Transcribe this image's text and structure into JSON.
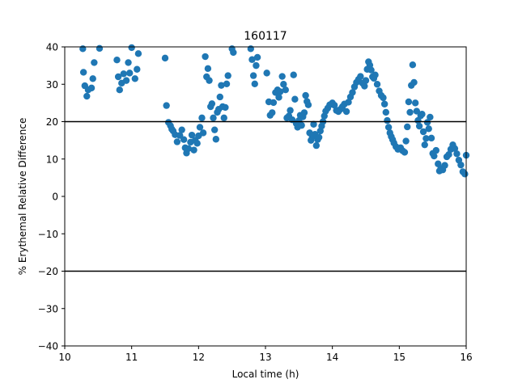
{
  "chart_data": {
    "type": "scatter",
    "title": "160117",
    "xlabel": "Local time (h)",
    "ylabel": "% Erythemal Relative Difference",
    "xlim": [
      10,
      16
    ],
    "ylim": [
      -40,
      40
    ],
    "xticks": [
      10,
      11,
      12,
      13,
      14,
      15,
      16
    ],
    "yticks": [
      -40,
      -30,
      -20,
      -10,
      0,
      10,
      20,
      30,
      40
    ],
    "x_tick_labels": [
      "10",
      "11",
      "12",
      "13",
      "14",
      "15",
      "16"
    ],
    "y_tick_labels": [
      "−40",
      "−30",
      "−20",
      "−10",
      "0",
      "10",
      "20",
      "30",
      "40"
    ],
    "reference_lines": [
      20,
      -20
    ],
    "reference_line_color": "#000000",
    "marker_color": "#1f77b4",
    "grid": false,
    "points": [
      [
        10.27,
        39.5
      ],
      [
        10.28,
        33.2
      ],
      [
        10.3,
        29.6
      ],
      [
        10.33,
        26.8
      ],
      [
        10.35,
        28.5
      ],
      [
        10.4,
        29.0
      ],
      [
        10.42,
        31.5
      ],
      [
        10.44,
        35.8
      ],
      [
        10.52,
        39.6
      ],
      [
        10.78,
        36.5
      ],
      [
        10.8,
        32.0
      ],
      [
        10.82,
        28.5
      ],
      [
        10.85,
        30.3
      ],
      [
        10.88,
        32.8
      ],
      [
        10.92,
        31.0
      ],
      [
        10.95,
        35.8
      ],
      [
        10.97,
        33.0
      ],
      [
        11.0,
        39.8
      ],
      [
        11.05,
        31.5
      ],
      [
        11.08,
        34.0
      ],
      [
        11.1,
        38.2
      ],
      [
        11.5,
        37.0
      ],
      [
        11.52,
        24.3
      ],
      [
        11.55,
        19.8
      ],
      [
        11.58,
        18.9
      ],
      [
        11.6,
        18.0
      ],
      [
        11.62,
        17.5
      ],
      [
        11.65,
        16.5
      ],
      [
        11.68,
        14.6
      ],
      [
        11.72,
        16.3
      ],
      [
        11.75,
        17.8
      ],
      [
        11.78,
        15.2
      ],
      [
        11.8,
        13.0
      ],
      [
        11.82,
        11.6
      ],
      [
        11.85,
        12.8
      ],
      [
        11.88,
        14.5
      ],
      [
        11.9,
        16.4
      ],
      [
        11.93,
        12.4
      ],
      [
        11.95,
        15.0
      ],
      [
        11.98,
        14.2
      ],
      [
        12.0,
        16.2
      ],
      [
        12.02,
        18.5
      ],
      [
        12.05,
        21.0
      ],
      [
        12.07,
        17.0
      ],
      [
        12.1,
        37.4
      ],
      [
        12.12,
        32.0
      ],
      [
        12.14,
        34.2
      ],
      [
        12.16,
        31.0
      ],
      [
        12.18,
        24.0
      ],
      [
        12.2,
        24.8
      ],
      [
        12.22,
        21.0
      ],
      [
        12.24,
        17.8
      ],
      [
        12.26,
        15.3
      ],
      [
        12.28,
        22.5
      ],
      [
        12.3,
        23.3
      ],
      [
        12.32,
        26.6
      ],
      [
        12.34,
        29.7
      ],
      [
        12.36,
        24.0
      ],
      [
        12.38,
        21.0
      ],
      [
        12.4,
        23.8
      ],
      [
        12.42,
        30.1
      ],
      [
        12.44,
        32.3
      ],
      [
        12.5,
        39.5
      ],
      [
        12.52,
        38.5
      ],
      [
        12.78,
        39.5
      ],
      [
        12.8,
        36.6
      ],
      [
        12.82,
        32.3
      ],
      [
        12.84,
        30.1
      ],
      [
        12.86,
        35.0
      ],
      [
        12.88,
        37.2
      ],
      [
        13.02,
        33.0
      ],
      [
        13.05,
        25.3
      ],
      [
        13.07,
        21.7
      ],
      [
        13.1,
        22.4
      ],
      [
        13.12,
        25.1
      ],
      [
        13.15,
        27.8
      ],
      [
        13.18,
        28.5
      ],
      [
        13.2,
        26.5
      ],
      [
        13.22,
        28.0
      ],
      [
        13.25,
        32.1
      ],
      [
        13.27,
        30.0
      ],
      [
        13.3,
        28.5
      ],
      [
        13.32,
        21.0
      ],
      [
        13.35,
        21.5
      ],
      [
        13.37,
        23.0
      ],
      [
        13.4,
        20.5
      ],
      [
        13.42,
        32.5
      ],
      [
        13.44,
        26.0
      ],
      [
        13.46,
        19.5
      ],
      [
        13.48,
        18.5
      ],
      [
        13.5,
        20.3
      ],
      [
        13.52,
        21.7
      ],
      [
        13.54,
        19.0
      ],
      [
        13.56,
        21.3
      ],
      [
        13.58,
        22.4
      ],
      [
        13.6,
        27.0
      ],
      [
        13.62,
        25.4
      ],
      [
        13.64,
        24.5
      ],
      [
        13.66,
        17.0
      ],
      [
        13.68,
        15.0
      ],
      [
        13.7,
        16.0
      ],
      [
        13.72,
        19.3
      ],
      [
        13.74,
        16.6
      ],
      [
        13.76,
        13.6
      ],
      [
        13.78,
        15.2
      ],
      [
        13.8,
        15.8
      ],
      [
        13.82,
        17.5
      ],
      [
        13.84,
        18.8
      ],
      [
        13.86,
        20.0
      ],
      [
        13.88,
        21.5
      ],
      [
        13.9,
        22.8
      ],
      [
        13.93,
        23.6
      ],
      [
        13.96,
        24.5
      ],
      [
        14.0,
        25.0
      ],
      [
        14.03,
        24.4
      ],
      [
        14.06,
        23.0
      ],
      [
        14.09,
        22.7
      ],
      [
        14.12,
        23.3
      ],
      [
        14.15,
        24.0
      ],
      [
        14.18,
        24.7
      ],
      [
        14.21,
        22.7
      ],
      [
        14.24,
        25.2
      ],
      [
        14.27,
        26.6
      ],
      [
        14.3,
        27.8
      ],
      [
        14.33,
        29.3
      ],
      [
        14.36,
        30.5
      ],
      [
        14.39,
        31.3
      ],
      [
        14.42,
        32.1
      ],
      [
        14.45,
        30.3
      ],
      [
        14.48,
        29.5
      ],
      [
        14.5,
        31.0
      ],
      [
        14.52,
        34.0
      ],
      [
        14.54,
        36.0
      ],
      [
        14.56,
        35.1
      ],
      [
        14.58,
        33.8
      ],
      [
        14.6,
        32.0
      ],
      [
        14.62,
        31.6
      ],
      [
        14.64,
        32.5
      ],
      [
        14.67,
        30.0
      ],
      [
        14.7,
        28.2
      ],
      [
        14.73,
        27.0
      ],
      [
        14.76,
        26.4
      ],
      [
        14.78,
        24.7
      ],
      [
        14.8,
        22.5
      ],
      [
        14.82,
        20.3
      ],
      [
        14.84,
        18.5
      ],
      [
        14.86,
        17.0
      ],
      [
        14.88,
        16.0
      ],
      [
        14.9,
        15.2
      ],
      [
        14.92,
        14.3
      ],
      [
        14.95,
        13.3
      ],
      [
        14.98,
        12.6
      ],
      [
        15.02,
        13.0
      ],
      [
        15.05,
        12.2
      ],
      [
        15.08,
        11.8
      ],
      [
        15.1,
        14.8
      ],
      [
        15.12,
        18.6
      ],
      [
        15.14,
        25.3
      ],
      [
        15.16,
        22.5
      ],
      [
        15.18,
        29.7
      ],
      [
        15.2,
        35.2
      ],
      [
        15.22,
        30.5
      ],
      [
        15.24,
        25.0
      ],
      [
        15.26,
        22.8
      ],
      [
        15.28,
        20.3
      ],
      [
        15.3,
        18.8
      ],
      [
        15.32,
        21.6
      ],
      [
        15.34,
        22.0
      ],
      [
        15.36,
        17.3
      ],
      [
        15.38,
        13.8
      ],
      [
        15.4,
        15.5
      ],
      [
        15.42,
        19.8
      ],
      [
        15.44,
        18.1
      ],
      [
        15.46,
        21.2
      ],
      [
        15.48,
        15.6
      ],
      [
        15.5,
        11.5
      ],
      [
        15.52,
        10.8
      ],
      [
        15.55,
        12.3
      ],
      [
        15.58,
        8.7
      ],
      [
        15.6,
        6.8
      ],
      [
        15.62,
        7.5
      ],
      [
        15.65,
        7.1
      ],
      [
        15.68,
        8.3
      ],
      [
        15.71,
        10.6
      ],
      [
        15.74,
        11.2
      ],
      [
        15.77,
        12.6
      ],
      [
        15.8,
        13.8
      ],
      [
        15.83,
        12.8
      ],
      [
        15.86,
        11.4
      ],
      [
        15.89,
        9.7
      ],
      [
        15.92,
        8.4
      ],
      [
        15.95,
        6.6
      ],
      [
        15.98,
        6.0
      ],
      [
        16.0,
        11.0
      ]
    ]
  }
}
